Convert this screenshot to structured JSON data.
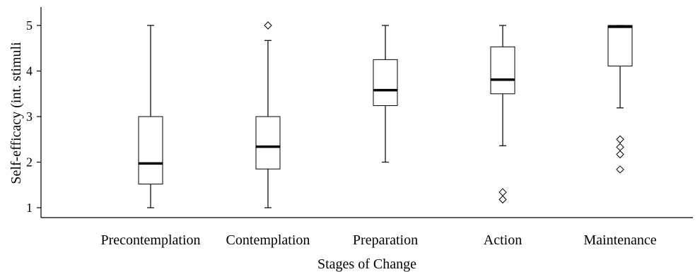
{
  "chart_data": {
    "type": "box",
    "title": "",
    "xlabel": "Stages of Change",
    "ylabel": "Self-efficacy (int. stimuli",
    "ylim": [
      0.8,
      5.25
    ],
    "yticks": [
      1,
      2,
      3,
      4,
      5
    ],
    "grid": false,
    "categories": [
      "Precontemplation",
      "Contemplation",
      "Preparation",
      "Action",
      "Maintenance"
    ],
    "boxes": [
      {
        "category": "Precontemplation",
        "whisker_low": 1.0,
        "q1": 1.52,
        "median": 1.97,
        "q3": 3.0,
        "whisker_high": 5.0,
        "outliers": []
      },
      {
        "category": "Contemplation",
        "whisker_low": 1.0,
        "q1": 1.85,
        "median": 2.34,
        "q3": 3.0,
        "whisker_high": 4.67,
        "outliers": [
          5.0
        ]
      },
      {
        "category": "Preparation",
        "whisker_low": 2.0,
        "q1": 3.24,
        "median": 3.58,
        "q3": 4.25,
        "whisker_high": 5.0,
        "outliers": []
      },
      {
        "category": "Action",
        "whisker_low": 2.36,
        "q1": 3.5,
        "median": 3.81,
        "q3": 4.53,
        "whisker_high": 5.0,
        "outliers": [
          1.34,
          1.18
        ]
      },
      {
        "category": "Maintenance",
        "whisker_low": 3.19,
        "q1": 4.11,
        "median": 4.97,
        "q3": 5.0,
        "whisker_high": 5.0,
        "outliers": [
          2.5,
          2.33,
          2.17,
          1.84
        ]
      }
    ]
  }
}
